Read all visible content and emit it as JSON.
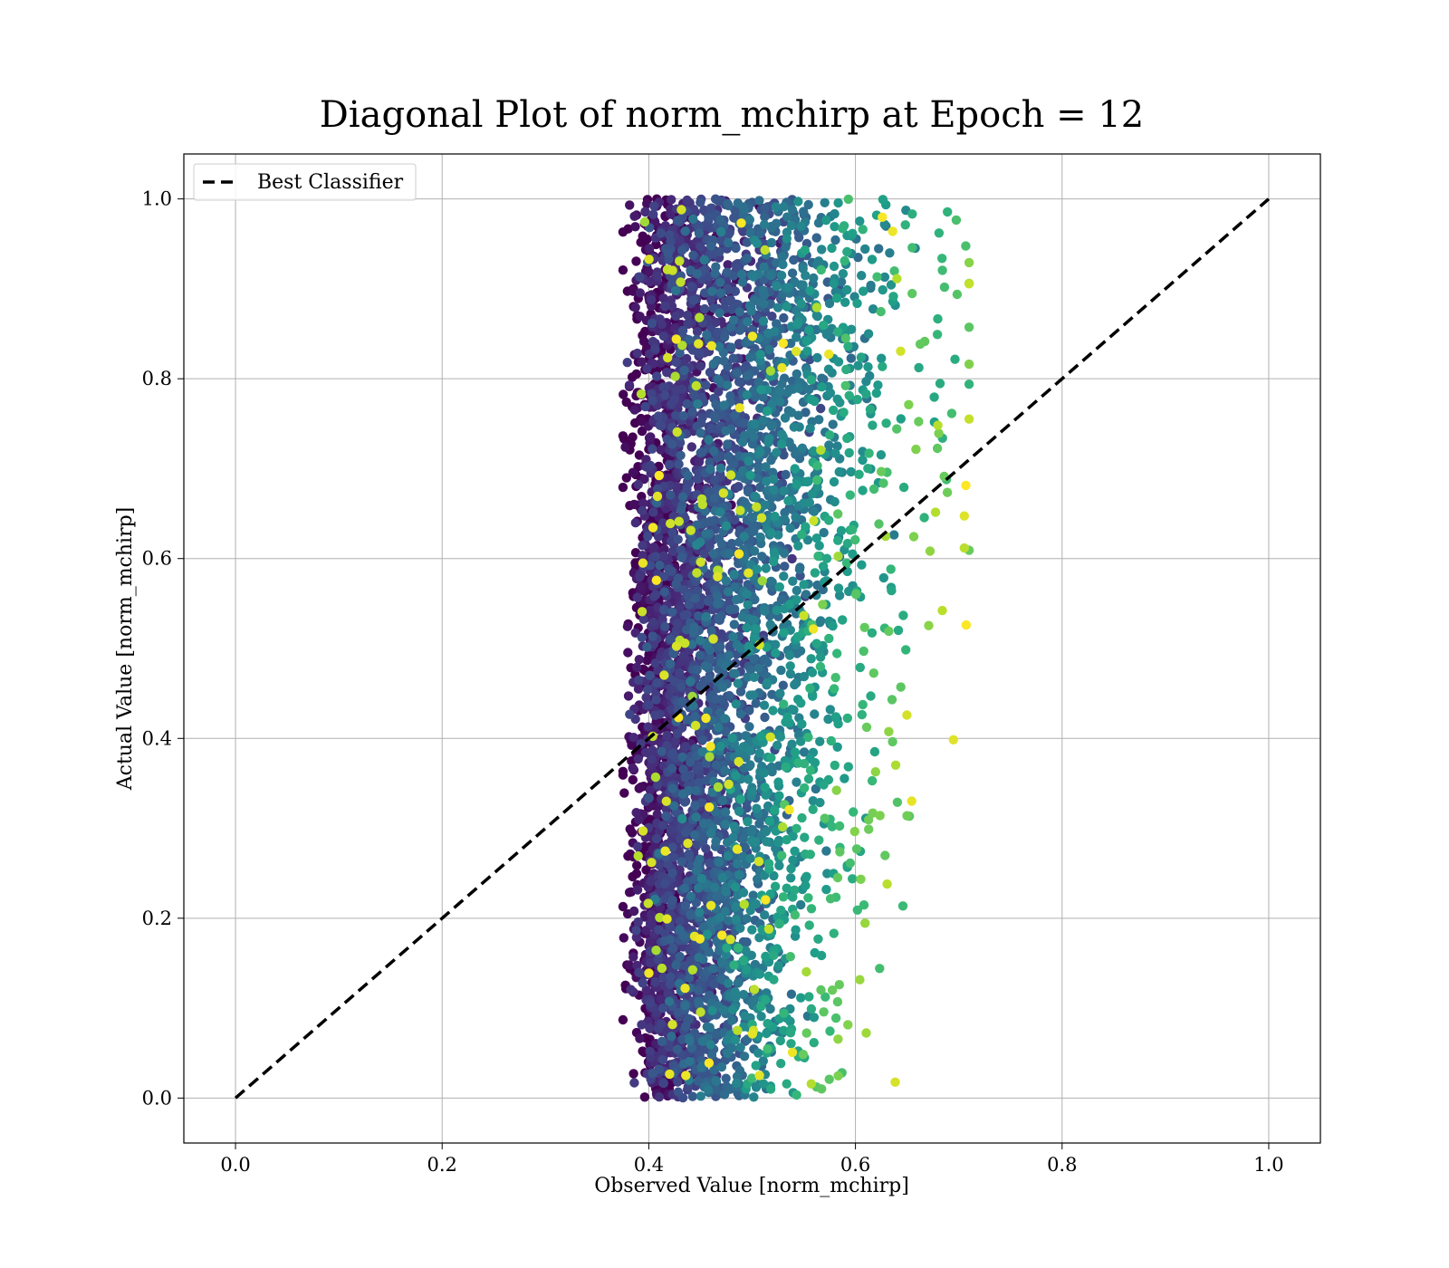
{
  "chart_data": {
    "type": "scatter",
    "title": "Diagonal Plot of norm_mchirp at Epoch = 12",
    "xlabel": "Observed Value [norm_mchirp]",
    "ylabel": "Actual Value [norm_mchirp]",
    "xlim": [
      -0.05,
      1.05
    ],
    "ylim": [
      -0.05,
      1.05
    ],
    "xticks": [
      "0.0",
      "0.2",
      "0.4",
      "0.6",
      "0.8",
      "1.0"
    ],
    "yticks": [
      "0.0",
      "0.2",
      "0.4",
      "0.6",
      "0.8",
      "1.0"
    ],
    "grid": true,
    "legend_position": "top-left",
    "colormap": "viridis",
    "reference_line": {
      "name": "Best Classifier",
      "x": [
        0.0,
        1.0
      ],
      "y": [
        0.0,
        1.0
      ],
      "style": "dashed",
      "color": "#000000"
    },
    "point_cloud": {
      "x_range_observed": [
        0.375,
        0.71
      ],
      "y_range_actual": [
        0.0,
        1.0
      ],
      "color_trend": "dark purple near x=0.40-0.45, shifting to teal/green/yellow toward x=0.55-0.70"
    }
  }
}
